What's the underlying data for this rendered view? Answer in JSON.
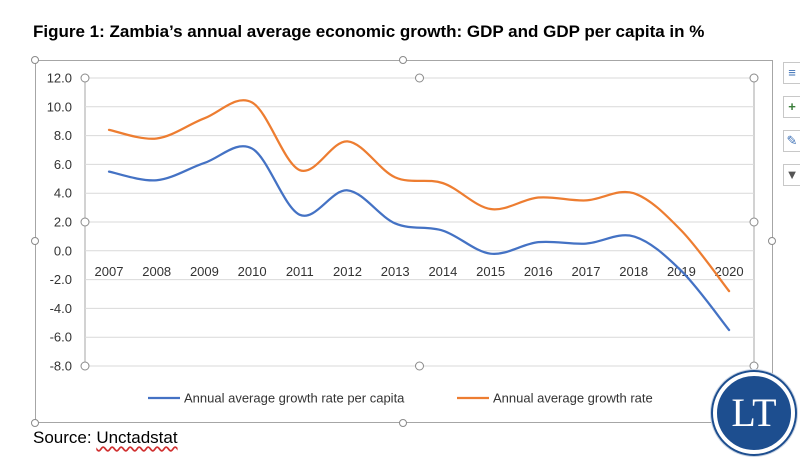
{
  "figure_title": "Figure 1: Zambia’s annual average economic growth: GDP and GDP per capita in %",
  "source": {
    "prefix": "Source: ",
    "name": "Unctadstat"
  },
  "logo_text": "LT",
  "colors": {
    "per_capita": "#4472c4",
    "gdp": "#ed7d31",
    "grid": "#d9d9d9",
    "logo": "#1d4e8f"
  },
  "side_tools": [
    "chart-elements-icon",
    "plus-icon",
    "brush-icon",
    "filter-icon"
  ],
  "chart_data": {
    "type": "line",
    "title": "",
    "xlabel": "",
    "ylabel": "",
    "categories": [
      "2007",
      "2008",
      "2009",
      "2010",
      "2011",
      "2012",
      "2013",
      "2014",
      "2015",
      "2016",
      "2017",
      "2018",
      "2019",
      "2020"
    ],
    "ylim": [
      -8.0,
      12.0
    ],
    "y_ticks": [
      "12.0",
      "10.0",
      "8.0",
      "6.0",
      "4.0",
      "2.0",
      "0.0",
      "-2.0",
      "-4.0",
      "-6.0",
      "-8.0"
    ],
    "grid": true,
    "smooth": true,
    "legend_position": "bottom",
    "series": [
      {
        "name": "Annual average growth rate per capita",
        "color": "#4472c4",
        "values": [
          5.5,
          4.9,
          6.1,
          7.1,
          2.5,
          4.2,
          1.9,
          1.4,
          -0.2,
          0.6,
          0.5,
          1.0,
          -1.4,
          -5.5
        ]
      },
      {
        "name": "Annual average growth rate",
        "color": "#ed7d31",
        "values": [
          8.4,
          7.8,
          9.2,
          10.3,
          5.6,
          7.6,
          5.1,
          4.7,
          2.9,
          3.7,
          3.5,
          4.0,
          1.4,
          -2.8
        ]
      }
    ]
  }
}
